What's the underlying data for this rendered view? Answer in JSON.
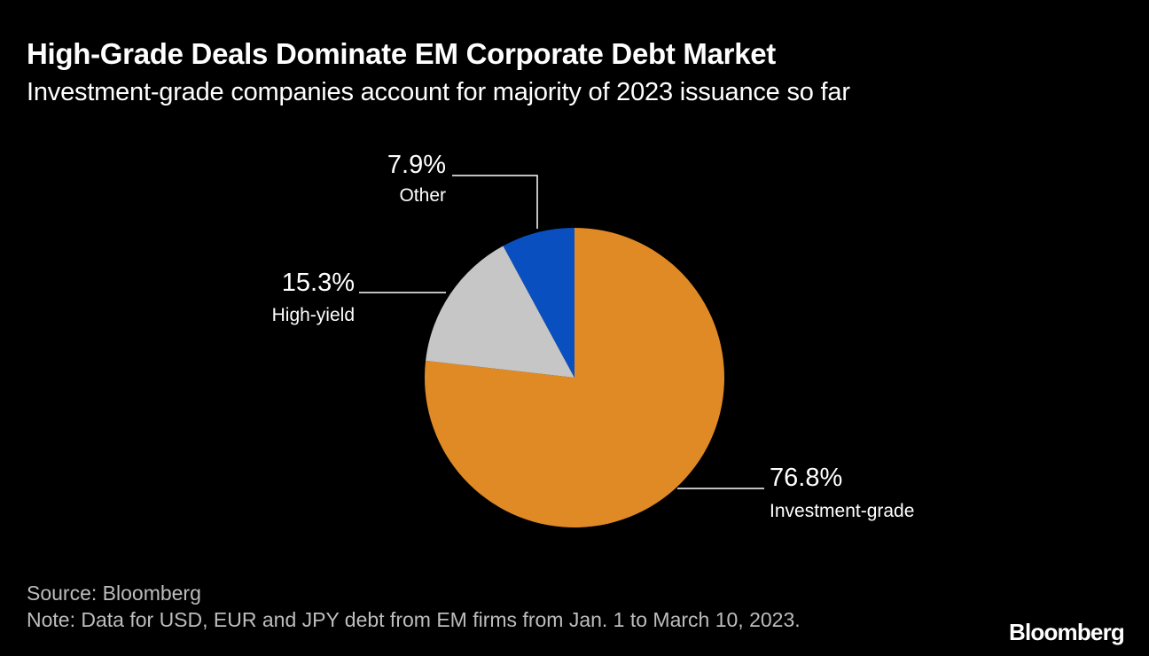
{
  "chart_data": {
    "type": "pie",
    "title": "High-Grade Deals Dominate EM Corporate Debt Market",
    "subtitle": "Investment-grade companies account for majority of 2023 issuance so far",
    "slices": [
      {
        "label": "Investment-grade",
        "value": 76.8,
        "value_label": "76.8%",
        "color": "#e08a26"
      },
      {
        "label": "High-yield",
        "value": 15.3,
        "value_label": "15.3%",
        "color": "#c6c6c6"
      },
      {
        "label": "Other",
        "value": 7.9,
        "value_label": "7.9%",
        "color": "#0a4fc0"
      }
    ]
  },
  "footer": {
    "source": "Source: Bloomberg",
    "note": "Note: Data for USD, EUR and JPY debt from EM firms from Jan. 1 to March 10, 2023."
  },
  "brand": {
    "logo_text": "Bloomberg"
  }
}
